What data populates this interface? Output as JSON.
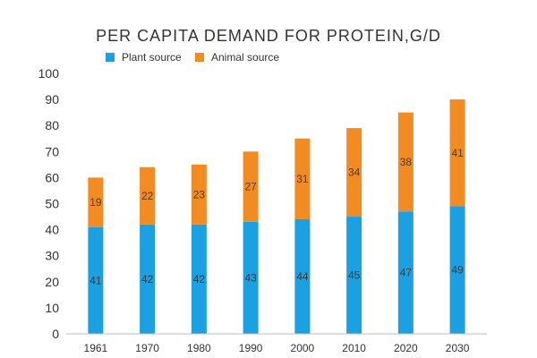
{
  "chart_data": {
    "type": "bar",
    "stacked": true,
    "title": "PER CAPITA DEMAND FOR PROTEIN,G/D",
    "categories": [
      "1961",
      "1970",
      "1980",
      "1990",
      "2000",
      "2010",
      "2020",
      "2030"
    ],
    "series": [
      {
        "name": "Plant source",
        "color": "#1ba1e2",
        "values": [
          41,
          42,
          42,
          43,
          44,
          45,
          47,
          49
        ]
      },
      {
        "name": "Animal source",
        "color": "#f28b22",
        "values": [
          19,
          22,
          23,
          27,
          31,
          34,
          38,
          41
        ]
      }
    ],
    "ylim": [
      0,
      100
    ],
    "yticks": [
      "0",
      "10",
      "20",
      "30",
      "40",
      "50",
      "60",
      "70",
      "80",
      "90",
      "100"
    ],
    "legend_position": "top",
    "grid": false
  }
}
